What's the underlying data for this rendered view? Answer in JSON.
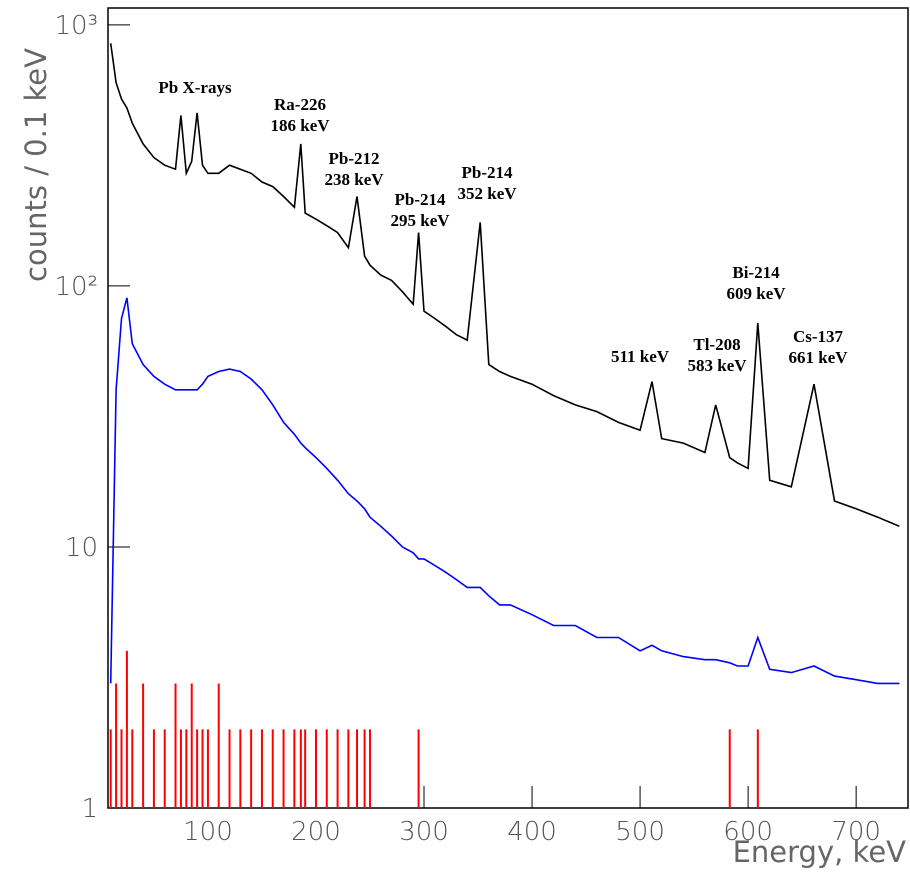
{
  "chart_data": {
    "type": "line",
    "y_label": "counts / 0.1 keV",
    "x_label": "Energy, keV",
    "log_y": true,
    "grid": false,
    "xlim": [
      7.5,
      748
    ],
    "ylim": [
      1,
      1160
    ],
    "xticks": [
      100,
      200,
      300,
      400,
      500,
      600,
      700
    ],
    "yticks": [
      1,
      10,
      {
        "value": 100,
        "label": "10²"
      },
      {
        "value": 1000,
        "label": "10³"
      }
    ],
    "x": [
      10,
      15,
      20,
      25,
      30,
      40,
      50,
      60,
      70,
      75,
      80,
      85,
      90,
      95,
      100,
      110,
      120,
      130,
      140,
      150,
      160,
      170,
      180,
      186,
      190,
      200,
      210,
      220,
      230,
      238,
      245,
      250,
      260,
      270,
      280,
      290,
      295,
      300,
      310,
      320,
      330,
      340,
      352,
      360,
      370,
      380,
      400,
      420,
      440,
      460,
      480,
      500,
      511,
      520,
      540,
      560,
      570,
      583,
      590,
      600,
      609,
      620,
      640,
      661,
      680,
      700,
      720,
      740
    ],
    "series": [
      {
        "color": "#000000",
        "style": "line",
        "values": [
          850,
          600,
          520,
          480,
          420,
          350,
          310,
          290,
          280,
          450,
          270,
          300,
          460,
          290,
          270,
          270,
          290,
          280,
          270,
          250,
          240,
          220,
          200,
          350,
          190,
          180,
          170,
          160,
          140,
          220,
          130,
          120,
          110,
          105,
          95,
          85,
          160,
          80,
          75,
          70,
          65,
          62,
          175,
          50,
          47,
          45,
          42,
          38,
          35,
          33,
          30,
          28,
          43,
          26,
          25,
          23,
          35,
          22,
          21,
          20,
          72,
          18,
          17,
          42,
          15,
          14,
          13,
          12
        ]
      },
      {
        "color": "#0000ff",
        "style": "line",
        "values": [
          3,
          40,
          75,
          90,
          60,
          50,
          45,
          42,
          40,
          40,
          40,
          40,
          40,
          42,
          45,
          47,
          48,
          47,
          44,
          40,
          35,
          30,
          27,
          25,
          24,
          22,
          20,
          18,
          16,
          15,
          14,
          13,
          12,
          11,
          10,
          9.5,
          9,
          9,
          8.5,
          8,
          7.5,
          7,
          7,
          6.5,
          6,
          6,
          5.5,
          5,
          5,
          4.5,
          4.5,
          4,
          4.2,
          4,
          3.8,
          3.7,
          3.7,
          3.6,
          3.5,
          3.5,
          4.5,
          3.4,
          3.3,
          3.5,
          3.2,
          3.1,
          3,
          3
        ]
      },
      {
        "color": "#ff0000",
        "style": "spikes",
        "values": [
          2,
          3,
          2,
          4,
          2,
          3,
          2,
          2,
          3,
          2,
          2,
          3,
          2,
          2,
          2,
          3,
          2,
          2,
          2,
          2,
          2,
          2,
          2,
          2,
          2,
          2,
          2,
          2,
          2,
          2,
          2,
          2,
          null,
          null,
          null,
          null,
          2,
          null,
          null,
          null,
          null,
          null,
          null,
          null,
          null,
          null,
          null,
          null,
          null,
          null,
          null,
          null,
          null,
          null,
          null,
          null,
          null,
          2,
          null,
          null,
          2,
          null,
          null,
          null,
          null,
          null,
          null,
          null
        ]
      }
    ],
    "annotations": [
      {
        "lines": [
          "Pb X-rays"
        ]
      },
      {
        "lines": [
          "Ra-226",
          "186 keV"
        ]
      },
      {
        "lines": [
          "Pb-212",
          "238 keV"
        ]
      },
      {
        "lines": [
          "Pb-214",
          "295 keV"
        ]
      },
      {
        "lines": [
          "Pb-214",
          "352 keV"
        ]
      },
      {
        "lines": [
          "511 keV"
        ]
      },
      {
        "lines": [
          "Tl-208",
          "583 keV"
        ]
      },
      {
        "lines": [
          "Bi-214",
          "609 keV"
        ]
      },
      {
        "lines": [
          "Cs-137",
          "661 keV"
        ]
      }
    ]
  }
}
